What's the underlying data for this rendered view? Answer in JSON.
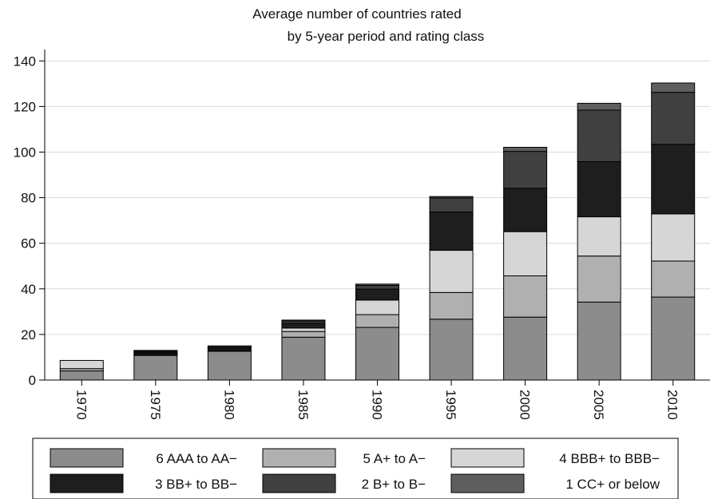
{
  "chart_data": {
    "type": "bar",
    "stacked": true,
    "title": "Average number of countries rated",
    "subtitle": "by 5-year period and rating class",
    "xlabel": "",
    "ylabel": "",
    "ylim": [
      0,
      145
    ],
    "yticks": [
      0,
      20,
      40,
      60,
      80,
      100,
      120,
      140
    ],
    "grid": true,
    "legend_position": "bottom",
    "categories": [
      "1970",
      "1975",
      "1980",
      "1985",
      "1990",
      "1995",
      "2000",
      "2005",
      "2010"
    ],
    "series": [
      {
        "name": "6 AAA to AA−",
        "color": "#8c8c8c",
        "values": [
          4.0,
          10.8,
          12.6,
          18.8,
          23.1,
          26.7,
          27.6,
          34.2,
          36.4
        ]
      },
      {
        "name": "5 A+ to A−",
        "color": "#b0b0b0",
        "values": [
          1.0,
          0.4,
          0.4,
          2.5,
          5.6,
          11.7,
          18.1,
          20.2,
          15.8
        ]
      },
      {
        "name": "4 BBB+ to BBB−",
        "color": "#d6d6d6",
        "values": [
          3.6,
          0.3,
          0.0,
          1.5,
          6.4,
          18.5,
          19.4,
          17.2,
          20.7
        ]
      },
      {
        "name": "3 BB+ to BB−",
        "color": "#1e1e1e",
        "values": [
          0.0,
          0.7,
          1.0,
          2.1,
          4.8,
          16.8,
          19.0,
          24.2,
          30.5
        ]
      },
      {
        "name": "2 B+ to B−",
        "color": "#404040",
        "values": [
          0.0,
          0.5,
          0.5,
          1.0,
          1.6,
          6.2,
          16.2,
          22.6,
          22.8
        ]
      },
      {
        "name": "1 CC+ or below",
        "color": "#5e5e5e",
        "values": [
          0.0,
          0.3,
          0.5,
          0.4,
          0.6,
          0.6,
          1.8,
          3.0,
          4.1
        ]
      }
    ]
  }
}
